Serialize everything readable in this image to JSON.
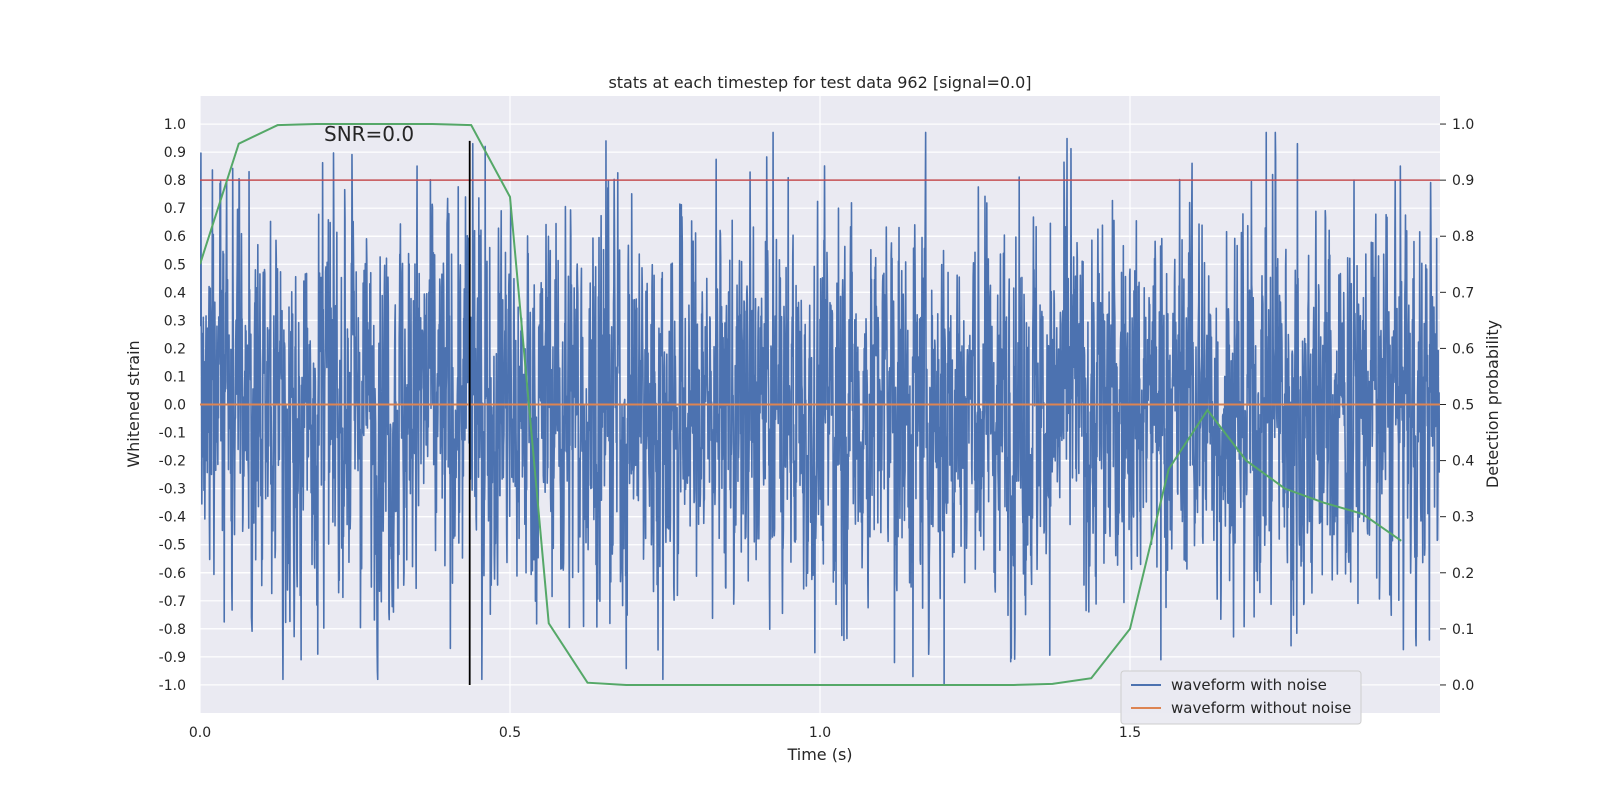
{
  "chart_data": {
    "type": "line",
    "title": "stats at each timestep for test data 962 [signal=0.0]",
    "xlabel": "Time (s)",
    "ylabel": "Whitened strain",
    "y2label": "Detection probability",
    "xlim": [
      0.0,
      2.0
    ],
    "ylim": [
      -1.1,
      1.1
    ],
    "y2lim": [
      -0.05,
      1.05
    ],
    "x_ticks": [
      "0.0",
      "0.5",
      "1.0",
      "1.5"
    ],
    "x_tick_values": [
      0.0,
      0.5,
      1.0,
      1.5
    ],
    "y_ticks": [
      "1.0",
      "0.9",
      "0.8",
      "0.7",
      "0.6",
      "0.5",
      "0.4",
      "0.3",
      "0.2",
      "0.1",
      "0.0",
      "-0.1",
      "-0.2",
      "-0.3",
      "-0.4",
      "-0.5",
      "-0.6",
      "-0.7",
      "-0.8",
      "-0.9",
      "-1.0"
    ],
    "y_tick_values": [
      1.0,
      0.9,
      0.8,
      0.7,
      0.6,
      0.5,
      0.4,
      0.3,
      0.2,
      0.1,
      0.0,
      -0.1,
      -0.2,
      -0.3,
      -0.4,
      -0.5,
      -0.6,
      -0.7,
      -0.8,
      -0.9,
      -1.0
    ],
    "y2_ticks": [
      "1.0",
      "0.9",
      "0.8",
      "0.7",
      "0.6",
      "0.5",
      "0.4",
      "0.3",
      "0.2",
      "0.1",
      "0.0"
    ],
    "y2_tick_values": [
      1.0,
      0.9,
      0.8,
      0.7,
      0.6,
      0.5,
      0.4,
      0.3,
      0.2,
      0.1,
      0.0
    ],
    "annotation": "SNR=0.0",
    "annotation_x": 0.2,
    "annotation_y": 0.94,
    "marker_line": {
      "x": 0.435,
      "y_from": -1.0,
      "y_to": 0.94,
      "color": "#000000"
    },
    "threshold": {
      "value": 0.9,
      "axis": "y2",
      "color": "#c44e52"
    },
    "series": [
      {
        "name": "waveform with noise",
        "axis": "y",
        "color": "#4c72b0",
        "sample_rate": 2048,
        "duration": 2.0,
        "extrema": [
          {
            "x": 0.079,
            "y": 0.83
          },
          {
            "x": 0.163,
            "y": -0.91
          },
          {
            "x": 0.19,
            "y": -0.89
          },
          {
            "x": 0.35,
            "y": 0.85
          },
          {
            "x": 0.44,
            "y": 0.93
          },
          {
            "x": 0.46,
            "y": 0.92
          },
          {
            "x": 0.655,
            "y": 0.94
          },
          {
            "x": 1.03,
            "y": 0.7
          },
          {
            "x": 1.12,
            "y": -0.92
          },
          {
            "x": 1.15,
            "y": -0.97
          },
          {
            "x": 1.2,
            "y": -1.0
          },
          {
            "x": 1.55,
            "y": 0.83
          },
          {
            "x": 1.55,
            "y": -0.91
          },
          {
            "x": 1.6,
            "y": 0.86
          },
          {
            "x": 1.76,
            "y": -0.86
          },
          {
            "x": 1.77,
            "y": 0.93
          },
          {
            "x": 1.73,
            "y": 0.82
          }
        ]
      },
      {
        "name": "waveform without noise",
        "axis": "y",
        "color": "#dd8452",
        "x": [
          0.0,
          2.0
        ],
        "y": [
          0.0,
          0.0
        ]
      },
      {
        "name": "detection probability",
        "axis": "y2",
        "color": "#55a868",
        "x": [
          0.0,
          0.0625,
          0.125,
          0.1875,
          0.25,
          0.3125,
          0.375,
          0.4375,
          0.5,
          0.5625,
          0.625,
          0.6875,
          0.75,
          0.8125,
          0.875,
          0.9375,
          1.0,
          1.0625,
          1.125,
          1.1875,
          1.25,
          1.3125,
          1.375,
          1.4375,
          1.5,
          1.5625,
          1.625,
          1.6875,
          1.75,
          1.8125,
          1.875,
          1.9375
        ],
        "y": [
          0.75,
          0.965,
          0.998,
          1.0,
          1.0,
          1.0,
          1.0,
          0.998,
          0.87,
          0.11,
          0.004,
          0.0,
          0.0,
          0.0,
          0.0,
          0.0,
          0.0,
          0.0,
          0.0,
          0.0,
          0.0,
          0.0,
          0.002,
          0.012,
          0.1,
          0.385,
          0.49,
          0.4,
          0.35,
          0.325,
          0.305,
          0.257
        ]
      }
    ],
    "legend": {
      "placement": "lower-right",
      "entries": [
        "waveform with noise",
        "waveform without noise"
      ]
    }
  }
}
